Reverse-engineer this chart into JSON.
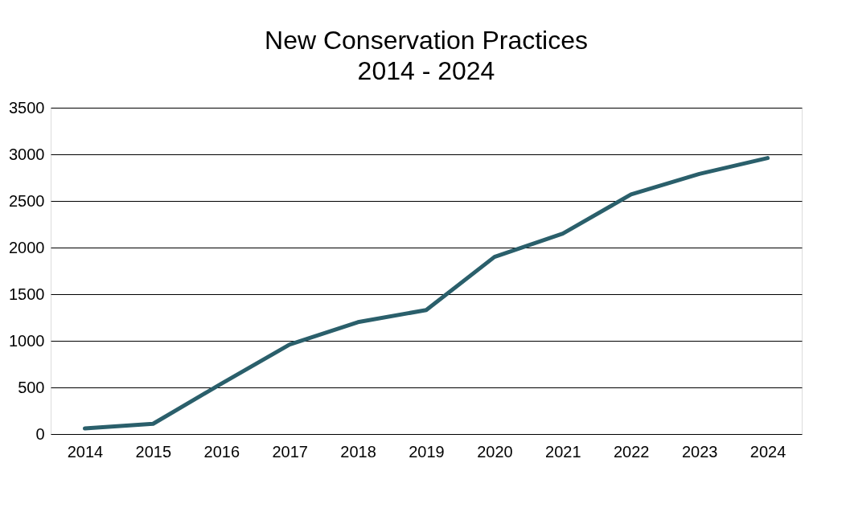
{
  "chart_data": {
    "type": "line",
    "title": "New Conservation Practices",
    "subtitle": "2014 - 2024",
    "categories": [
      "2014",
      "2015",
      "2016",
      "2017",
      "2018",
      "2019",
      "2020",
      "2021",
      "2022",
      "2023",
      "2024"
    ],
    "series": [
      {
        "color": "#2a5f6b",
        "values": [
          60,
          110,
          540,
          960,
          1200,
          1330,
          1900,
          2150,
          2570,
          2790,
          2960
        ]
      }
    ],
    "ylim": [
      0,
      3500
    ],
    "yticks": [
      0,
      500,
      1000,
      1500,
      2000,
      2500,
      3000,
      3500
    ],
    "grid": "y",
    "marker": "none",
    "line_style": "solid"
  }
}
